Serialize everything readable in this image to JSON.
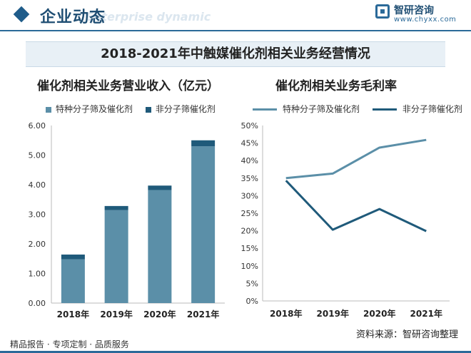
{
  "header": {
    "title": "企业动态",
    "subtitle": "Enterprise dynamic",
    "logo_name": "智研咨询",
    "logo_url": "www.chyxx.com"
  },
  "banner": "2018-2021年中触媒催化剂相关业务经营情况",
  "colors": {
    "series_light": "#5b8fa8",
    "series_dark": "#1f5a7a",
    "accent": "#2b6a99"
  },
  "chart_data": [
    {
      "type": "bar",
      "stacked": true,
      "title": "催化剂相关业务营业收入（亿元）",
      "categories": [
        "2018年",
        "2019年",
        "2020年",
        "2021年"
      ],
      "series": [
        {
          "name": "特种分子筛及催化剂",
          "values": [
            1.48,
            3.14,
            3.82,
            5.3
          ]
        },
        {
          "name": "非分子筛催化剂",
          "values": [
            0.16,
            0.14,
            0.15,
            0.2
          ]
        }
      ],
      "yticks": [
        "0.00",
        "1.00",
        "2.00",
        "3.00",
        "4.00",
        "5.00",
        "6.00"
      ],
      "ylim": [
        0,
        6
      ],
      "grid": false,
      "legend": "top"
    },
    {
      "type": "line",
      "title": "催化剂相关业务毛利率",
      "categories": [
        "2018年",
        "2019年",
        "2020年",
        "2021年"
      ],
      "series": [
        {
          "name": "特种分子筛及催化剂",
          "values": [
            35.0,
            36.3,
            43.7,
            45.9
          ]
        },
        {
          "name": "非分子筛催化剂",
          "values": [
            34.3,
            20.3,
            26.2,
            19.9
          ]
        }
      ],
      "yticks": [
        "0%",
        "5%",
        "10%",
        "15%",
        "20%",
        "25%",
        "30%",
        "35%",
        "40%",
        "45%",
        "50%"
      ],
      "ylim": [
        0,
        50
      ],
      "grid": false,
      "legend": "top"
    }
  ],
  "footer": {
    "left": "精品报告 · 专项定制 · 品质服务",
    "source": "资料来源：智研咨询整理"
  }
}
